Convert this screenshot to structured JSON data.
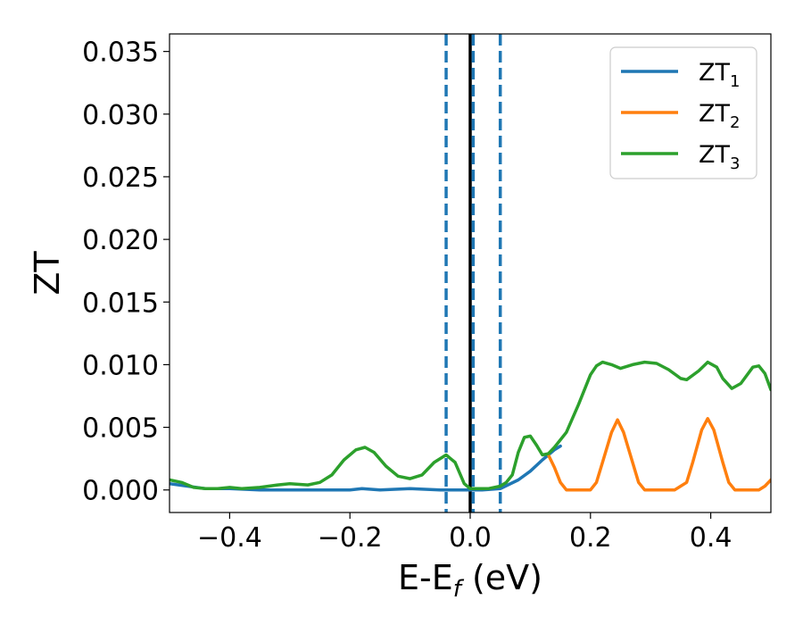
{
  "chart_data": {
    "type": "line",
    "xlabel": {
      "main": "E-E",
      "sub": "f",
      "unit": " (eV)"
    },
    "ylabel": "ZT",
    "xlim": [
      -0.5,
      0.5
    ],
    "ylim": [
      -0.0018,
      0.0364
    ],
    "x_ticks": [
      -0.4,
      -0.2,
      0.0,
      0.2,
      0.4
    ],
    "x_tick_labels": [
      "−0.4",
      "−0.2",
      "0.0",
      "0.2",
      "0.4"
    ],
    "y_ticks": [
      0.0,
      0.005,
      0.01,
      0.015,
      0.02,
      0.025,
      0.03,
      0.035
    ],
    "y_tick_labels": [
      "0.000",
      "0.005",
      "0.010",
      "0.015",
      "0.020",
      "0.025",
      "0.030",
      "0.035"
    ],
    "grid": false,
    "legend_position": "top-right",
    "vertical_lines": [
      {
        "x": -0.04,
        "style": "dashed",
        "color": "#1f77b4"
      },
      {
        "x": 0.0,
        "style": "solid",
        "color": "#000000"
      },
      {
        "x": 0.005,
        "style": "dashed",
        "color": "#1f77b4"
      },
      {
        "x": 0.05,
        "style": "dashed",
        "color": "#1f77b4"
      }
    ],
    "series": [
      {
        "name": "ZT",
        "sub": "1",
        "color": "#1f77b4",
        "points": [
          [
            -0.5,
            0.0005
          ],
          [
            -0.47,
            0.0003
          ],
          [
            -0.44,
            0.0001
          ],
          [
            -0.4,
            0.0001
          ],
          [
            -0.35,
            0.0
          ],
          [
            -0.3,
            0.0
          ],
          [
            -0.25,
            0.0
          ],
          [
            -0.2,
            0.0
          ],
          [
            -0.18,
            0.0001
          ],
          [
            -0.15,
            0.0
          ],
          [
            -0.1,
            0.0001
          ],
          [
            -0.05,
            0.0
          ],
          [
            -0.02,
            0.0
          ],
          [
            0.0,
            0.0
          ],
          [
            0.02,
            0.0
          ],
          [
            0.05,
            0.0001
          ],
          [
            0.08,
            0.0008
          ],
          [
            0.1,
            0.0015
          ],
          [
            0.12,
            0.0024
          ],
          [
            0.14,
            0.0032
          ],
          [
            0.15,
            0.0035
          ]
        ]
      },
      {
        "name": "ZT",
        "sub": "2",
        "color": "#ff7f0e",
        "points": [
          [
            0.13,
            0.0028
          ],
          [
            0.14,
            0.0018
          ],
          [
            0.15,
            0.0006
          ],
          [
            0.16,
            0.0
          ],
          [
            0.18,
            0.0
          ],
          [
            0.2,
            0.0
          ],
          [
            0.21,
            0.0006
          ],
          [
            0.22,
            0.0022
          ],
          [
            0.235,
            0.0046
          ],
          [
            0.245,
            0.0056
          ],
          [
            0.255,
            0.0046
          ],
          [
            0.27,
            0.0022
          ],
          [
            0.28,
            0.0006
          ],
          [
            0.29,
            0.0
          ],
          [
            0.31,
            0.0
          ],
          [
            0.34,
            0.0
          ],
          [
            0.36,
            0.0006
          ],
          [
            0.37,
            0.0022
          ],
          [
            0.385,
            0.0048
          ],
          [
            0.395,
            0.0057
          ],
          [
            0.405,
            0.0048
          ],
          [
            0.42,
            0.0022
          ],
          [
            0.43,
            0.0006
          ],
          [
            0.44,
            0.0
          ],
          [
            0.47,
            0.0
          ],
          [
            0.48,
            0.0
          ],
          [
            0.49,
            0.0003
          ],
          [
            0.5,
            0.0008
          ]
        ]
      },
      {
        "name": "ZT",
        "sub": "3",
        "color": "#2ca02c",
        "points": [
          [
            -0.5,
            0.0008
          ],
          [
            -0.48,
            0.0006
          ],
          [
            -0.46,
            0.0002
          ],
          [
            -0.44,
            0.0001
          ],
          [
            -0.42,
            0.0001
          ],
          [
            -0.4,
            0.0002
          ],
          [
            -0.38,
            0.0001
          ],
          [
            -0.35,
            0.0002
          ],
          [
            -0.32,
            0.0004
          ],
          [
            -0.3,
            0.0005
          ],
          [
            -0.27,
            0.0004
          ],
          [
            -0.25,
            0.0006
          ],
          [
            -0.23,
            0.0012
          ],
          [
            -0.21,
            0.0024
          ],
          [
            -0.19,
            0.0032
          ],
          [
            -0.175,
            0.0034
          ],
          [
            -0.16,
            0.003
          ],
          [
            -0.14,
            0.0019
          ],
          [
            -0.12,
            0.0011
          ],
          [
            -0.1,
            0.0009
          ],
          [
            -0.08,
            0.0012
          ],
          [
            -0.06,
            0.0022
          ],
          [
            -0.04,
            0.0028
          ],
          [
            -0.025,
            0.0022
          ],
          [
            -0.01,
            0.0005
          ],
          [
            0.0,
            0.0001
          ],
          [
            0.01,
            0.0001
          ],
          [
            0.03,
            0.0001
          ],
          [
            0.05,
            0.0003
          ],
          [
            0.06,
            0.0006
          ],
          [
            0.07,
            0.0012
          ],
          [
            0.08,
            0.003
          ],
          [
            0.09,
            0.0042
          ],
          [
            0.1,
            0.0043
          ],
          [
            0.11,
            0.0036
          ],
          [
            0.12,
            0.0028
          ],
          [
            0.13,
            0.0029
          ],
          [
            0.14,
            0.0034
          ],
          [
            0.16,
            0.0046
          ],
          [
            0.18,
            0.0068
          ],
          [
            0.2,
            0.0092
          ],
          [
            0.21,
            0.0099
          ],
          [
            0.22,
            0.0102
          ],
          [
            0.235,
            0.01
          ],
          [
            0.25,
            0.0097
          ],
          [
            0.27,
            0.01
          ],
          [
            0.29,
            0.0102
          ],
          [
            0.31,
            0.0101
          ],
          [
            0.33,
            0.0096
          ],
          [
            0.35,
            0.0089
          ],
          [
            0.36,
            0.0088
          ],
          [
            0.38,
            0.0095
          ],
          [
            0.395,
            0.0102
          ],
          [
            0.41,
            0.0098
          ],
          [
            0.42,
            0.0089
          ],
          [
            0.435,
            0.0081
          ],
          [
            0.45,
            0.0085
          ],
          [
            0.47,
            0.0098
          ],
          [
            0.48,
            0.0099
          ],
          [
            0.49,
            0.0093
          ],
          [
            0.5,
            0.008
          ]
        ]
      }
    ]
  }
}
